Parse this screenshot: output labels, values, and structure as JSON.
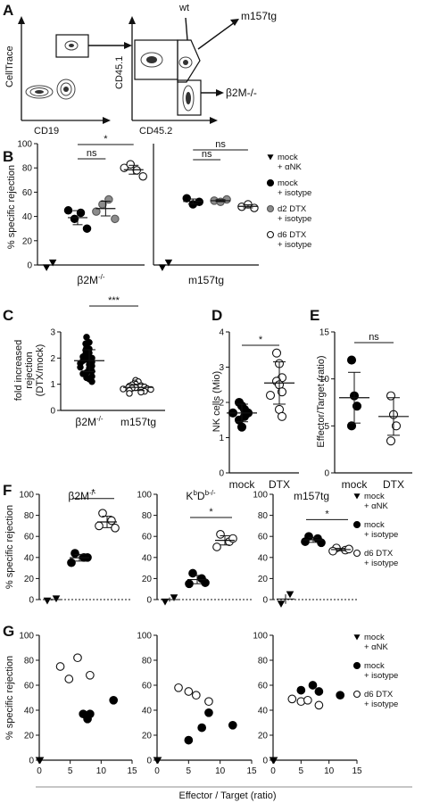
{
  "panel_labels": {
    "A": "A",
    "B": "B",
    "C": "C",
    "D": "D",
    "E": "E",
    "F": "F",
    "G": "G"
  },
  "panel_a": {
    "plot1_ylabel": "CellTrace",
    "plot1_xlabel": "CD19",
    "plot2_ylabel": "CD45.1",
    "plot2_xlabel": "CD45.2",
    "gate_top": "wt",
    "gate_right_top": "m157tg",
    "gate_right_bottom": "β2M-/-"
  },
  "chart_data": [
    {
      "id": "B",
      "type": "scatter",
      "ylabel": "% specific rejection",
      "ylim": [
        0,
        100
      ],
      "yticks": [
        0,
        20,
        40,
        60,
        80,
        100
      ],
      "groups": [
        {
          "name": "β2M-/-",
          "series": [
            {
              "name": "mock + αNK",
              "values": [
                -2,
                2
              ]
            },
            {
              "name": "mock + isotype",
              "values": [
                45,
                38,
                43,
                30
              ]
            },
            {
              "name": "d2 DTX + isotype",
              "values": [
                44,
                50,
                54,
                38
              ]
            },
            {
              "name": "d6 DTX + isotype",
              "values": [
                80,
                83,
                78,
                73
              ]
            }
          ]
        },
        {
          "name": "m157tg",
          "series": [
            {
              "name": "mock + αNK",
              "values": [
                -2,
                2
              ]
            },
            {
              "name": "mock + isotype",
              "values": [
                55,
                50,
                52
              ]
            },
            {
              "name": "d2 DTX + isotype",
              "values": [
                53,
                52,
                54
              ]
            },
            {
              "name": "d6 DTX + isotype",
              "values": [
                48,
                50,
                47
              ]
            }
          ]
        }
      ],
      "significance": [
        {
          "label": "ns",
          "from": "mock + isotype",
          "to": "d2 DTX + isotype",
          "group": "β2M-/-"
        },
        {
          "label": "*",
          "from": "mock + isotype",
          "to": "d6 DTX + isotype",
          "group": "β2M-/-"
        },
        {
          "label": "ns",
          "from": "mock + isotype",
          "to": "d2 DTX + isotype",
          "group": "m157tg"
        },
        {
          "label": "ns",
          "from": "mock + isotype",
          "to": "d6 DTX + isotype",
          "group": "m157tg"
        }
      ],
      "legend": [
        {
          "marker": "triangle-filled",
          "lines": [
            "mock",
            "+ αNK"
          ]
        },
        {
          "marker": "circle-filled",
          "lines": [
            "mock",
            "+ isotype"
          ]
        },
        {
          "marker": "circle-grey",
          "lines": [
            "d2 DTX",
            "+ isotype"
          ]
        },
        {
          "marker": "circle-open",
          "lines": [
            "d6 DTX",
            "+ isotype"
          ]
        }
      ]
    },
    {
      "id": "C",
      "type": "scatter",
      "ylabel_lines": [
        "fold increased",
        "rejection",
        "(DTX/mock)"
      ],
      "ylim": [
        0,
        3
      ],
      "yticks": [
        0,
        1,
        2,
        3
      ],
      "categories": [
        "β2M-/-",
        "m157tg"
      ],
      "series": [
        {
          "name": "β2M-/-",
          "marker": "circle-filled",
          "mean": 1.9,
          "sd": 0.42,
          "values": [
            2.8,
            2.6,
            2.55,
            2.4,
            2.35,
            2.3,
            2.25,
            2.2,
            2.15,
            2.1,
            2.05,
            2.0,
            1.95,
            1.9,
            1.85,
            1.8,
            1.75,
            1.7,
            1.65,
            1.6,
            1.5,
            1.45,
            1.4,
            1.3,
            1.25,
            1.2,
            1.1
          ]
        },
        {
          "name": "m157tg",
          "marker": "circle-open",
          "mean": 0.88,
          "sd": 0.12,
          "values": [
            1.15,
            1.1,
            1.05,
            1.0,
            0.98,
            0.95,
            0.93,
            0.9,
            0.88,
            0.87,
            0.85,
            0.83,
            0.82,
            0.8,
            0.78,
            0.76,
            0.73,
            0.7,
            0.65
          ]
        }
      ],
      "significance": [
        {
          "label": "***",
          "from": "β2M-/-",
          "to": "m157tg"
        }
      ]
    },
    {
      "id": "D",
      "type": "scatter",
      "ylabel": "NK cells (Mio)",
      "ylim": [
        0,
        4
      ],
      "yticks": [
        0,
        1,
        2,
        3,
        4
      ],
      "categories": [
        "mock",
        "DTX"
      ],
      "series": [
        {
          "name": "mock",
          "marker": "circle-filled",
          "mean": 1.7,
          "sd": 0.25,
          "values": [
            2.0,
            1.9,
            1.8,
            1.7,
            1.7,
            1.6,
            1.5,
            1.3
          ]
        },
        {
          "name": "DTX",
          "marker": "circle-open",
          "mean": 2.55,
          "sd": 0.6,
          "values": [
            3.4,
            3.1,
            2.7,
            2.6,
            2.5,
            2.3,
            2.2,
            1.8,
            1.6
          ]
        }
      ],
      "significance": [
        {
          "label": "*",
          "from": "mock",
          "to": "DTX"
        }
      ]
    },
    {
      "id": "E",
      "type": "scatter",
      "ylabel": "Effector/Target (ratio)",
      "ylim": [
        0,
        15
      ],
      "yticks": [
        0,
        5,
        10,
        15
      ],
      "categories": [
        "mock",
        "DTX"
      ],
      "series": [
        {
          "name": "mock",
          "marker": "circle-filled",
          "mean": 8.0,
          "sd": 2.7,
          "values": [
            12.0,
            8.2,
            7.1,
            5.0
          ]
        },
        {
          "name": "DTX",
          "marker": "circle-open",
          "mean": 6.0,
          "sd": 2.0,
          "values": [
            8.2,
            6.2,
            5.0,
            3.4
          ]
        }
      ],
      "significance": [
        {
          "label": "ns",
          "from": "mock",
          "to": "DTX"
        }
      ]
    },
    {
      "id": "F",
      "type": "scatter",
      "ylabel": "% specific rejection",
      "ylim": [
        0,
        100
      ],
      "yticks": [
        0,
        20,
        40,
        60,
        80,
        100
      ],
      "panels": [
        {
          "title": "β2M-/-",
          "series": [
            {
              "name": "mock + αNK",
              "values": [
                -1,
                1
              ]
            },
            {
              "name": "mock + isotype",
              "values": [
                44,
                40,
                35,
                40
              ]
            },
            {
              "name": "d6 DTX + isotype",
              "values": [
                82,
                75,
                70,
                68
              ]
            }
          ],
          "significance": "*"
        },
        {
          "title": "KbDb-/-",
          "series": [
            {
              "name": "mock + αNK",
              "values": [
                -2,
                2
              ]
            },
            {
              "name": "mock + isotype",
              "values": [
                25,
                20,
                15,
                16
              ]
            },
            {
              "name": "d6 DTX + isotype",
              "values": [
                62,
                55,
                50,
                58
              ]
            }
          ],
          "significance": "*"
        },
        {
          "title": "m157tg",
          "series": [
            {
              "name": "mock + αNK",
              "values": [
                -4,
                5
              ]
            },
            {
              "name": "mock + isotype",
              "values": [
                60,
                58,
                55,
                54
              ]
            },
            {
              "name": "d6 DTX + isotype",
              "values": [
                49,
                47,
                46,
                48
              ]
            }
          ],
          "significance": "*"
        }
      ],
      "legend": [
        {
          "marker": "triangle-filled",
          "lines": [
            "mock",
            "+ αNK"
          ]
        },
        {
          "marker": "circle-filled",
          "lines": [
            "mock",
            "+ isotype"
          ]
        },
        {
          "marker": "circle-open",
          "lines": [
            "d6 DTX",
            "+ isotype"
          ]
        }
      ]
    },
    {
      "id": "G",
      "type": "scatter",
      "ylabel": "% specific rejection",
      "xlabel": "Effector / Target (ratio)",
      "xlim": [
        0,
        15
      ],
      "xticks": [
        0,
        5,
        10,
        15
      ],
      "ylim": [
        0,
        100
      ],
      "yticks": [
        0,
        20,
        40,
        60,
        80,
        100
      ],
      "panels": [
        {
          "series": [
            {
              "name": "mock + αNK",
              "points": [
                [
                  0,
                  0
                ],
                [
                  0,
                  0
                ]
              ]
            },
            {
              "name": "mock + isotype",
              "points": [
                [
                  7.1,
                  37
                ],
                [
                  7.8,
                  33
                ],
                [
                  8.2,
                  37
                ],
                [
                  12.0,
                  48
                ]
              ]
            },
            {
              "name": "d6 DTX + isotype",
              "points": [
                [
                  3.4,
                  75
                ],
                [
                  4.8,
                  65
                ],
                [
                  6.2,
                  82
                ],
                [
                  8.2,
                  68
                ]
              ]
            }
          ]
        },
        {
          "series": [
            {
              "name": "mock + αNK",
              "points": [
                [
                  0,
                  0
                ],
                [
                  0,
                  0
                ]
              ]
            },
            {
              "name": "mock + isotype",
              "points": [
                [
                  5.0,
                  16
                ],
                [
                  7.1,
                  26
                ],
                [
                  8.2,
                  38
                ],
                [
                  12.0,
                  28
                ]
              ]
            },
            {
              "name": "d6 DTX + isotype",
              "points": [
                [
                  3.4,
                  58
                ],
                [
                  5.0,
                  55
                ],
                [
                  6.2,
                  52
                ],
                [
                  8.2,
                  47
                ]
              ]
            }
          ]
        },
        {
          "series": [
            {
              "name": "mock + αNK",
              "points": [
                [
                  0,
                  0
                ],
                [
                  0,
                  0
                ]
              ]
            },
            {
              "name": "mock + isotype",
              "points": [
                [
                  5.0,
                  56
                ],
                [
                  7.1,
                  60
                ],
                [
                  8.2,
                  55
                ],
                [
                  12.0,
                  52
                ]
              ]
            },
            {
              "name": "d6 DTX + isotype",
              "points": [
                [
                  3.4,
                  49
                ],
                [
                  5.0,
                  47
                ],
                [
                  6.2,
                  48
                ],
                [
                  8.2,
                  44
                ]
              ]
            }
          ]
        }
      ],
      "legend": [
        {
          "marker": "triangle-filled",
          "lines": [
            "mock",
            "+ αNK"
          ]
        },
        {
          "marker": "circle-filled",
          "lines": [
            "mock",
            "+ isotype"
          ]
        },
        {
          "marker": "circle-open",
          "lines": [
            "d6 DTX",
            "+ isotype"
          ]
        }
      ]
    }
  ],
  "colors": {
    "filled": "#000000",
    "grey": "#8c8c8c",
    "open_fill": "#ffffff",
    "axis": "#111111"
  }
}
